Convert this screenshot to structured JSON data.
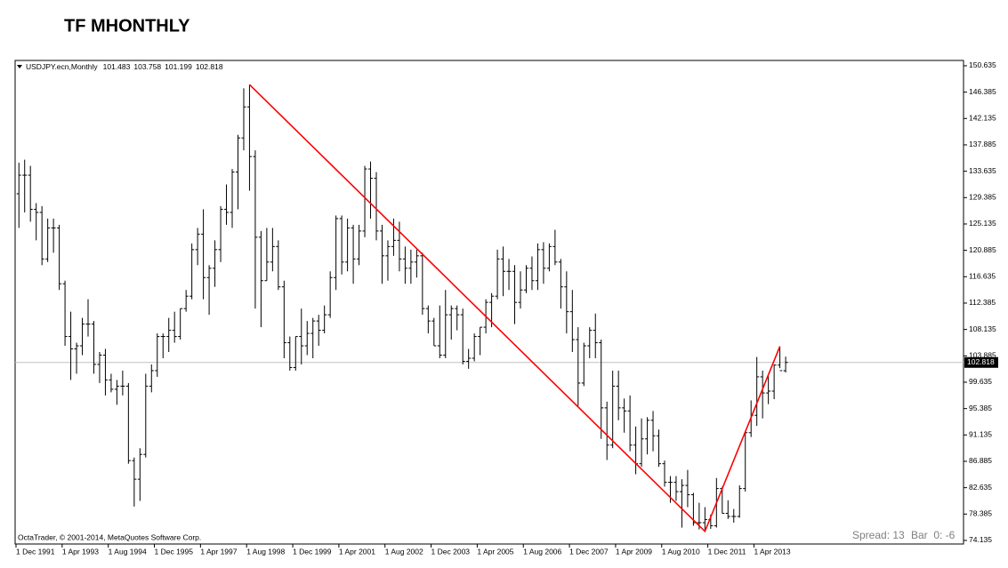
{
  "title": "TF MHONTHLY",
  "chart_data": {
    "type": "ohlc",
    "header": {
      "symbol": "USDJPY.ecn,Monthly",
      "open": 101.483,
      "high": 103.758,
      "low": 101.199,
      "close": 102.818
    },
    "footer": "OctaTrader, © 2001-2014, MetaQuotes Software Corp.",
    "status": {
      "spread": "Spread: 13",
      "bar": "Bar  0: -6"
    },
    "color": "#000000",
    "current_price": 102.818,
    "categories": [
      "1 Dec 1991",
      null,
      null,
      null,
      null,
      null,
      null,
      null,
      "1 Apr 1993",
      null,
      null,
      null,
      null,
      null,
      null,
      null,
      "1 Aug 1994",
      null,
      null,
      null,
      null,
      null,
      null,
      null,
      "1 Dec 1995",
      null,
      null,
      null,
      null,
      null,
      null,
      null,
      "1 Apr 1997",
      null,
      null,
      null,
      null,
      null,
      null,
      null,
      "1 Aug 1998",
      null,
      null,
      null,
      null,
      null,
      null,
      null,
      "1 Dec 1999",
      null,
      null,
      null,
      null,
      null,
      null,
      null,
      "1 Apr 2001",
      null,
      null,
      null,
      null,
      null,
      null,
      null,
      "1 Aug 2002",
      null,
      null,
      null,
      null,
      null,
      null,
      null,
      "1 Dec 2003",
      null,
      null,
      null,
      null,
      null,
      null,
      null,
      "1 Apr 2005",
      null,
      null,
      null,
      null,
      null,
      null,
      null,
      "1 Aug 2006",
      null,
      null,
      null,
      null,
      null,
      null,
      null,
      "1 Dec 2007",
      null,
      null,
      null,
      null,
      null,
      null,
      null,
      "1 Apr 2009",
      null,
      null,
      null,
      null,
      null,
      null,
      null,
      "1 Aug 2010",
      null,
      null,
      null,
      null,
      null,
      null,
      null,
      "1 Dec 2011",
      null,
      null,
      null,
      null,
      null,
      null,
      null,
      "1 Apr 2013",
      null,
      null,
      null,
      null,
      null
    ],
    "open": [
      130,
      133,
      133,
      127.5,
      127,
      119.5,
      124.5,
      124.5,
      115.5,
      107,
      105,
      105.5,
      109,
      109,
      102.5,
      104,
      100,
      98.5,
      99,
      99,
      87,
      84,
      88,
      99,
      101.5,
      107,
      107,
      108,
      107,
      111.5,
      113.5,
      121,
      123.5,
      116.5,
      118,
      121,
      127.5,
      127,
      133.5,
      139,
      144,
      136,
      123,
      116,
      119,
      121.5,
      115,
      106,
      102,
      107,
      105.5,
      107.5,
      109.5,
      108,
      110.5,
      116.5,
      126,
      119,
      124.5,
      119.5,
      124,
      134,
      132.5,
      124,
      120,
      121.5,
      122.5,
      119.5,
      118,
      119,
      120,
      111.5,
      109.5,
      105.5,
      104,
      110.5,
      111.5,
      110.5,
      103,
      103.5,
      107,
      108.5,
      112.5,
      113.5,
      119.5,
      117.5,
      117.5,
      112.5,
      114.5,
      118,
      116,
      121,
      118,
      121.5,
      119,
      115,
      111,
      106.5,
      99.5,
      105.5,
      108,
      106,
      95.5,
      89.5,
      99,
      95.5,
      95,
      89.5,
      86.5,
      90.5,
      93.5,
      91,
      86.5,
      83.5,
      83.5,
      82,
      83,
      81.5,
      77,
      77,
      77.5,
      76.5,
      82.5,
      78.5,
      78,
      78,
      82.5,
      91.5,
      94.3,
      100.5,
      97.9,
      98.2,
      102.4,
      101.483
    ],
    "high": [
      135,
      135.5,
      134.5,
      128.5,
      128,
      126,
      126,
      125,
      116,
      111,
      106,
      110,
      113,
      109.5,
      104.5,
      105,
      101,
      100,
      101.5,
      99.5,
      87.5,
      89,
      101,
      102.5,
      107.5,
      107.5,
      110,
      111,
      111.5,
      114.5,
      122,
      124.5,
      127.5,
      118.5,
      122.5,
      128,
      131.5,
      134,
      139.5,
      147,
      147.6,
      137,
      124,
      124.5,
      124.5,
      122.5,
      116,
      107,
      107,
      111.5,
      109.5,
      110,
      110.5,
      112,
      117.5,
      126.5,
      126.5,
      126,
      125,
      125,
      134.5,
      135.2,
      133.5,
      125,
      122.5,
      126,
      125.5,
      121.5,
      121,
      121,
      120.5,
      112,
      110,
      112,
      114.5,
      112,
      112,
      111.5,
      105,
      107.5,
      108.5,
      113,
      114,
      121,
      121.5,
      119.5,
      118.5,
      117.5,
      118.5,
      119.9,
      122,
      122.2,
      122,
      124.2,
      119.5,
      117.5,
      114.5,
      108.5,
      106,
      108.5,
      110.7,
      106.5,
      96.5,
      101.5,
      101.5,
      97,
      97.5,
      92.5,
      93.8,
      94,
      95,
      92,
      87,
      84.5,
      84.5,
      84,
      85.5,
      81.8,
      80.2,
      79.5,
      78.3,
      84.2,
      82.8,
      80.6,
      79.2,
      83,
      91.7,
      96.7,
      103.7,
      101.5,
      100.6,
      102.5,
      105.4,
      103.758
    ],
    "low": [
      124.5,
      127,
      125.5,
      122.5,
      118.5,
      119,
      120.5,
      114.5,
      105.5,
      100,
      101,
      104,
      107,
      101,
      99.5,
      97.5,
      98,
      96,
      97.5,
      86.5,
      79.6,
      80.5,
      87.5,
      98,
      100.5,
      103.5,
      104.5,
      106,
      106.5,
      111,
      113,
      118.5,
      113,
      110.5,
      115,
      119,
      125,
      124.5,
      127.5,
      137,
      130.5,
      111.5,
      108.5,
      116,
      117.5,
      114.5,
      103.5,
      101.5,
      101.5,
      102.5,
      104,
      103.5,
      105.5,
      107.5,
      110,
      114.5,
      117,
      117.5,
      115.5,
      118.5,
      123,
      126,
      122.5,
      115.5,
      116,
      120,
      117.5,
      115.5,
      115.5,
      116.5,
      110.5,
      107.5,
      105.5,
      103.5,
      103.5,
      106.5,
      108,
      102.5,
      101.8,
      103,
      104,
      107.5,
      108.5,
      113,
      113.5,
      114.5,
      109,
      111.5,
      114,
      114.5,
      114.5,
      115.5,
      117.5,
      118.5,
      111.5,
      107.5,
      104.5,
      95.8,
      99,
      103.5,
      103.5,
      90.5,
      87.1,
      89,
      93.5,
      91.5,
      88.5,
      84.8,
      86,
      88,
      88.5,
      86,
      82.8,
      80.2,
      80.5,
      76.2,
      79.5,
      76.5,
      75.9,
      75.6,
      76,
      76.2,
      78.5,
      77.6,
      77,
      77.8,
      82,
      90.8,
      92.6,
      93.8,
      96.1,
      96.9,
      101.9,
      101.199
    ],
    "close": [
      133,
      133,
      127.5,
      127,
      119.5,
      124.5,
      124.5,
      115.5,
      107,
      105,
      105.5,
      109,
      109,
      102.5,
      104,
      100,
      98.5,
      99,
      99,
      87,
      84,
      88,
      99,
      101.5,
      107,
      107,
      108,
      107,
      111.5,
      113.5,
      121,
      123.5,
      116.5,
      118,
      121,
      127.5,
      127,
      133.5,
      139,
      144,
      136,
      123,
      116,
      119,
      121.5,
      115,
      106,
      102,
      107,
      105.5,
      107.5,
      109.5,
      108,
      110.5,
      116.5,
      126,
      119,
      124.5,
      119.5,
      124,
      134,
      132.5,
      124,
      120,
      121.5,
      122.5,
      119.5,
      118,
      119,
      120,
      111.5,
      109.5,
      105.5,
      104,
      110.5,
      111.5,
      110.5,
      103,
      103.5,
      107,
      108.5,
      112.5,
      113.5,
      119.5,
      117.5,
      117.5,
      112.5,
      114.5,
      118,
      116,
      121,
      118,
      121.5,
      119,
      115,
      111,
      106.5,
      99.5,
      105.5,
      108,
      106,
      95.5,
      89.5,
      99,
      95.5,
      95,
      89.5,
      86.5,
      90.5,
      93.5,
      91,
      86.5,
      83.5,
      83.5,
      82,
      83,
      81.5,
      77,
      77,
      77.5,
      76.5,
      82.5,
      78.5,
      78,
      78,
      82.5,
      91.5,
      94.3,
      100.5,
      97.9,
      98.2,
      102.4,
      101.5,
      102.818
    ],
    "trendline": {
      "color": "#ff0000",
      "values": [
        147.6,
        75.6,
        105.4
      ]
    },
    "ylim": [
      73.56,
      151.49
    ],
    "yticks": [
      150.635,
      146.385,
      142.135,
      137.885,
      133.635,
      129.385,
      125.135,
      120.885,
      116.635,
      112.385,
      108.135,
      103.885,
      99.635,
      95.385,
      91.135,
      86.885,
      82.635,
      78.385,
      74.135
    ]
  }
}
